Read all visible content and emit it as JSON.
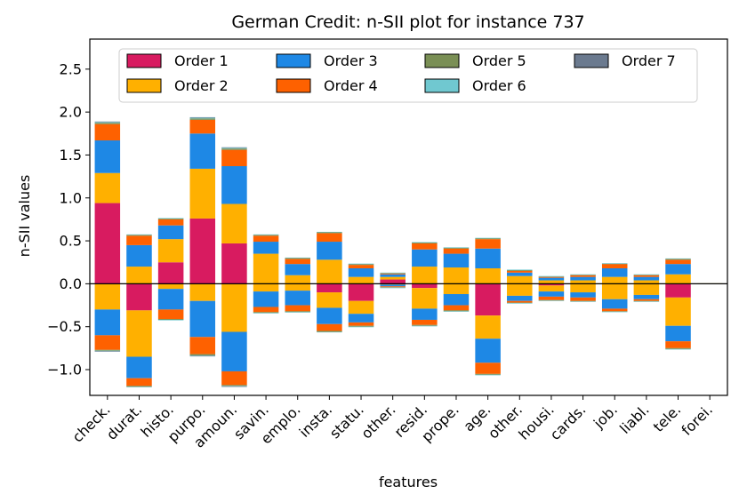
{
  "chart_data": {
    "type": "bar",
    "title": "German Credit: n-SII plot for instance 737",
    "xlabel": "features",
    "ylabel": "n-SII values",
    "ylim": [
      -1.3,
      2.85
    ],
    "yticks": [
      -1.0,
      -0.5,
      0.0,
      0.5,
      1.0,
      1.5,
      2.0,
      2.5
    ],
    "ytick_labels": [
      "−1.0",
      "−0.5",
      "0.0",
      "0.5",
      "1.0",
      "1.5",
      "2.0",
      "2.5"
    ],
    "legend_position": "top-center",
    "categories": [
      "check.",
      "durat.",
      "histo.",
      "purpo.",
      "amoun.",
      "savin.",
      "emplo.",
      "insta.",
      "statu.",
      "other.",
      "resid.",
      "prope.",
      "age.",
      "other.",
      "housi.",
      "cards.",
      "job.",
      "liabl.",
      "tele.",
      "forei."
    ],
    "series": [
      {
        "name": "Order 1",
        "color": "#d81b60",
        "pos": [
          0.94,
          0,
          0.25,
          0.76,
          0.47,
          0,
          0,
          0,
          0,
          0.05,
          0,
          0,
          0,
          0,
          0,
          0,
          0,
          0,
          0,
          0
        ],
        "neg": [
          0,
          -0.31,
          0,
          0,
          0,
          0,
          0,
          -0.1,
          -0.2,
          0,
          -0.05,
          0,
          -0.37,
          0,
          -0.02,
          0,
          0,
          0,
          -0.16,
          0
        ]
      },
      {
        "name": "Order 2",
        "color": "#ffb000",
        "pos": [
          0.35,
          0.2,
          0.27,
          0.58,
          0.46,
          0.35,
          0.1,
          0.28,
          0.08,
          0.03,
          0.2,
          0.19,
          0.18,
          0.09,
          0.04,
          0.04,
          0.08,
          0.04,
          0.11,
          0.005
        ],
        "neg": [
          -0.3,
          -0.54,
          -0.06,
          -0.2,
          -0.56,
          -0.09,
          -0.08,
          -0.18,
          -0.15,
          -0.01,
          -0.24,
          -0.12,
          -0.27,
          -0.14,
          -0.07,
          -0.1,
          -0.18,
          -0.13,
          -0.33,
          0
        ]
      },
      {
        "name": "Order 3",
        "color": "#1e88e5",
        "pos": [
          0.38,
          0.25,
          0.16,
          0.41,
          0.44,
          0.14,
          0.13,
          0.21,
          0.1,
          0.03,
          0.2,
          0.16,
          0.23,
          0.04,
          0.03,
          0.04,
          0.1,
          0.04,
          0.12,
          0
        ],
        "neg": [
          -0.3,
          -0.25,
          -0.24,
          -0.42,
          -0.46,
          -0.18,
          -0.17,
          -0.19,
          -0.1,
          -0.02,
          -0.13,
          -0.13,
          -0.28,
          -0.06,
          -0.06,
          -0.06,
          -0.11,
          -0.05,
          -0.18,
          0
        ]
      },
      {
        "name": "Order 4",
        "color": "#fe6100",
        "pos": [
          0.19,
          0.11,
          0.07,
          0.16,
          0.19,
          0.07,
          0.06,
          0.1,
          0.04,
          0.01,
          0.07,
          0.06,
          0.11,
          0.02,
          0.01,
          0.02,
          0.05,
          0.02,
          0.05,
          0
        ],
        "neg": [
          -0.17,
          -0.09,
          -0.11,
          -0.2,
          -0.16,
          -0.06,
          -0.07,
          -0.08,
          -0.04,
          -0.01,
          -0.06,
          -0.06,
          -0.13,
          -0.02,
          -0.04,
          -0.04,
          -0.03,
          -0.02,
          -0.08,
          0
        ]
      },
      {
        "name": "Order 5",
        "color": "#7a8f55",
        "pos": [
          0.015,
          0.01,
          0.01,
          0.015,
          0.015,
          0.01,
          0.01,
          0.01,
          0.01,
          0.005,
          0.01,
          0.01,
          0.01,
          0.01,
          0.005,
          0.005,
          0.005,
          0.005,
          0.01,
          0
        ],
        "neg": [
          -0.01,
          -0.01,
          -0.01,
          -0.015,
          -0.01,
          -0.01,
          -0.01,
          -0.01,
          -0.01,
          -0.005,
          -0.01,
          -0.01,
          -0.01,
          -0.005,
          -0.005,
          -0.005,
          -0.005,
          -0.005,
          -0.01,
          0
        ]
      },
      {
        "name": "Order 6",
        "color": "#70c8d0",
        "pos": [
          0.01,
          0.005,
          0.005,
          0.01,
          0.01,
          0.005,
          0.005,
          0.005,
          0.005,
          0.005,
          0.005,
          0.005,
          0.005,
          0.005,
          0.005,
          0.005,
          0.005,
          0.005,
          0.005,
          0
        ],
        "neg": [
          -0.005,
          -0.005,
          -0.005,
          -0.005,
          -0.005,
          -0.005,
          -0.005,
          -0.005,
          -0.005,
          -0.005,
          -0.005,
          -0.005,
          -0.005,
          -0.005,
          -0.005,
          -0.005,
          -0.005,
          -0.005,
          -0.005,
          0
        ]
      },
      {
        "name": "Order 7",
        "color": "#6b7a8f",
        "pos": [
          0.005,
          0,
          0,
          0.005,
          0.005,
          0,
          0,
          0,
          0,
          0,
          0,
          0,
          0,
          0,
          0,
          0,
          0,
          0,
          0,
          0
        ],
        "neg": [
          -0.005,
          0,
          0,
          -0.005,
          -0.005,
          0,
          0,
          0,
          0,
          0,
          0,
          0,
          0,
          0,
          0,
          0,
          0,
          0,
          0,
          0
        ]
      }
    ]
  }
}
